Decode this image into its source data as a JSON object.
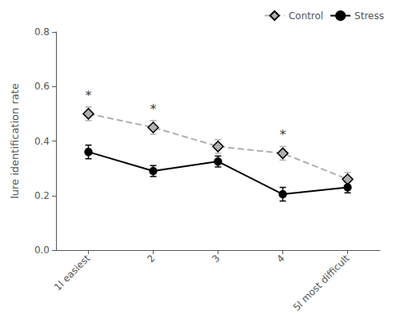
{
  "chart_data": {
    "type": "line",
    "ylabel": "lure identification rate",
    "x": [
      1,
      2,
      3,
      4,
      5
    ],
    "xlim": [
      0.5,
      5.5
    ],
    "xticks": [
      {
        "value": 1,
        "label": "1l easiest"
      },
      2,
      3,
      4,
      {
        "value": 5,
        "label": "5l most difficult"
      }
    ],
    "ylim": [
      0.0,
      0.8
    ],
    "yticks": [
      {
        "value": 0.0,
        "label": "0.0"
      },
      0.2,
      0.4,
      0.6,
      0.8
    ],
    "series": [
      {
        "name": "Control",
        "color": "#b0b0b0",
        "marker": "diamond",
        "line_style": "dashed",
        "values": [
          0.5,
          0.45,
          0.38,
          0.355,
          0.26
        ],
        "errors": [
          0.025,
          0.025,
          0.025,
          0.025,
          0.025
        ]
      },
      {
        "name": "Stress",
        "color": "#000000",
        "marker": "circle",
        "line_style": "solid",
        "values": [
          0.36,
          0.29,
          0.325,
          0.205,
          0.23
        ],
        "errors": [
          0.025,
          0.02,
          0.02,
          0.025,
          0.02
        ]
      }
    ],
    "annotations": [
      {
        "x": 1,
        "y": 0.545,
        "text": "*"
      },
      {
        "x": 2,
        "y": 0.495,
        "text": "*"
      },
      {
        "x": 4,
        "y": 0.4,
        "text": "*"
      }
    ],
    "legend": "upper right",
    "grid": false
  }
}
